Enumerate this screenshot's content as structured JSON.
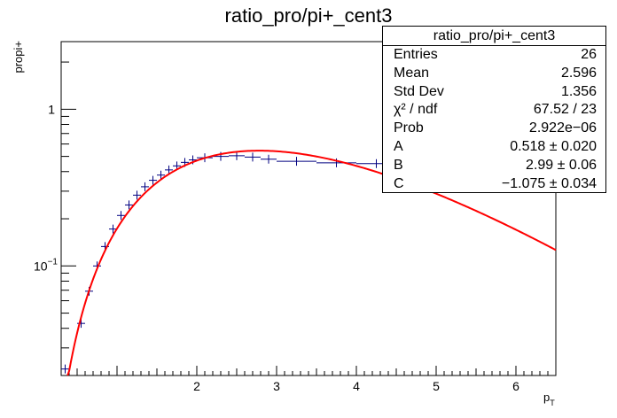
{
  "chart_data": {
    "type": "scatter",
    "title": "ratio_pro/pi+_cent3",
    "xlabel": "p",
    "xlabel_sub": "T",
    "ylabel": "propi+",
    "xlim": [
      0.3,
      6.5
    ],
    "ylim": [
      0.02,
      2.7
    ],
    "yscale": "log",
    "x_ticks": [
      2,
      3,
      4,
      5,
      6
    ],
    "y_ticks": [
      {
        "value": 0.1,
        "base": "10",
        "exp": "−1"
      },
      {
        "value": 1,
        "label": "1"
      }
    ],
    "grid": false,
    "series": [
      {
        "type": "points",
        "color": "#000080",
        "x": [
          0.35,
          0.55,
          0.65,
          0.75,
          0.85,
          0.95,
          1.05,
          1.15,
          1.25,
          1.35,
          1.45,
          1.55,
          1.65,
          1.75,
          1.85,
          1.95,
          2.1,
          2.3,
          2.5,
          2.7,
          2.9,
          3.25,
          3.75,
          4.25
        ],
        "y": [
          0.022,
          0.043,
          0.069,
          0.1,
          0.133,
          0.172,
          0.21,
          0.245,
          0.283,
          0.32,
          0.352,
          0.38,
          0.41,
          0.435,
          0.458,
          0.475,
          0.49,
          0.5,
          0.505,
          0.495,
          0.48,
          0.465,
          0.455,
          0.45
        ],
        "x_err": [
          0.05,
          0.05,
          0.05,
          0.05,
          0.05,
          0.05,
          0.05,
          0.05,
          0.05,
          0.05,
          0.05,
          0.05,
          0.05,
          0.05,
          0.05,
          0.05,
          0.1,
          0.1,
          0.1,
          0.1,
          0.1,
          0.25,
          0.25,
          0.25
        ]
      },
      {
        "type": "fit",
        "color": "#ff0000",
        "params": {
          "A": 0.518,
          "B": 2.99,
          "C": -1.075
        },
        "x_range": [
          0.4,
          6.5
        ]
      }
    ],
    "stats_box": {
      "title": "ratio_pro/pi+_cent3",
      "rows": [
        {
          "label": "Entries",
          "value": "26"
        },
        {
          "label": "Mean",
          "value": "2.596"
        },
        {
          "label": "Std Dev",
          "value": "1.356"
        },
        {
          "label": "χ² / ndf",
          "value": "67.52 / 23"
        },
        {
          "label": "Prob",
          "value": "2.922e−06"
        },
        {
          "label": "A",
          "value": "0.518 ± 0.020"
        },
        {
          "label": "B",
          "value": "2.99 ± 0.06"
        },
        {
          "label": "C",
          "value": "−1.075 ± 0.034"
        }
      ],
      "legend_position": "top-right"
    }
  }
}
